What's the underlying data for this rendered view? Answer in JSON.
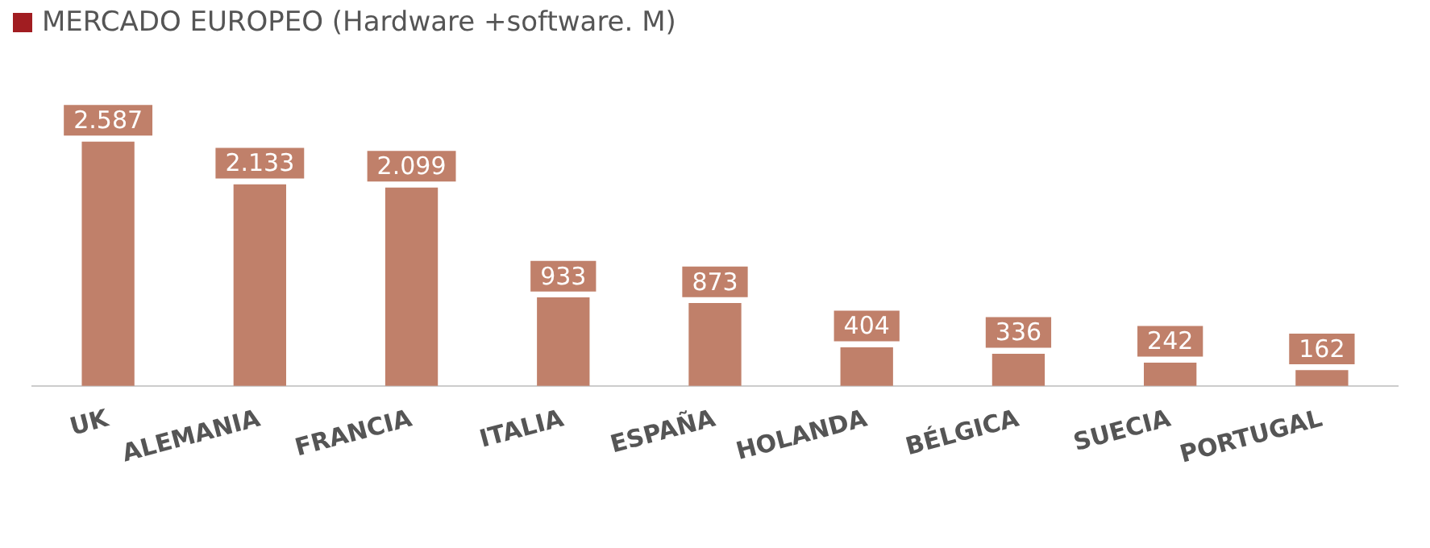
{
  "chart_data": {
    "type": "bar",
    "title": "MERCADO EUROPEO (Hardware +software. M)",
    "categories": [
      "UK",
      "ALEMANIA",
      "FRANCIA",
      "ITALIA",
      "ESPAÑA",
      "HOLANDA",
      "BÉLGICA",
      "SUECIA",
      "PORTUGAL"
    ],
    "values": [
      2587,
      2133,
      2099,
      933,
      873,
      404,
      336,
      242,
      162
    ],
    "value_labels": [
      "2.587",
      "2.133",
      "2.099",
      "933",
      "873",
      "404",
      "336",
      "242",
      "162"
    ],
    "color": "#c0806a",
    "grid": false,
    "legend": false
  }
}
